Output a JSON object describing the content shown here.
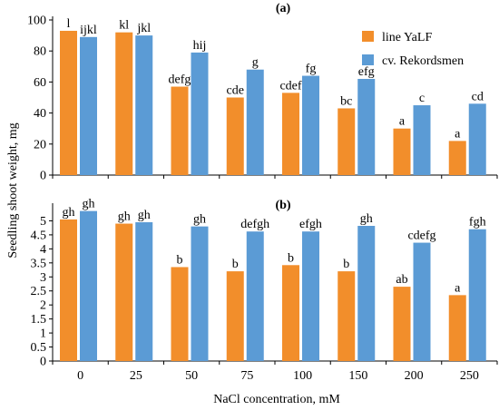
{
  "chart_data": [
    {
      "type": "bar",
      "panel_label": "(a)",
      "categories": [
        "0",
        "25",
        "50",
        "75",
        "100",
        "150",
        "200",
        "250"
      ],
      "ylim": [
        0,
        100
      ],
      "yticks": [
        0,
        20,
        40,
        60,
        80,
        100
      ],
      "grid": false,
      "legend_position": "top-right",
      "series": [
        {
          "name": "line YaLF",
          "color": "#F28E2B",
          "values": [
            93,
            92,
            57,
            50,
            53,
            43,
            30,
            22
          ],
          "labels": [
            "l",
            "kl",
            "defg",
            "cde",
            "cdef",
            "bc",
            "a",
            "a"
          ]
        },
        {
          "name": "cv. Rekordsmen",
          "color": "#5B9BD5",
          "values": [
            89,
            90,
            79,
            68,
            64,
            62,
            45,
            46
          ],
          "labels": [
            "ijkl",
            "jkl",
            "hij",
            "g",
            "fg",
            "efg",
            "c",
            "cd"
          ]
        }
      ]
    },
    {
      "type": "bar",
      "panel_label": "(b)",
      "categories": [
        "0",
        "25",
        "50",
        "75",
        "100",
        "150",
        "200",
        "250"
      ],
      "ylim": [
        0,
        5.5
      ],
      "yticks": [
        0,
        0.5,
        1,
        1.5,
        2,
        2.5,
        3,
        3.5,
        4,
        4.5,
        5
      ],
      "grid": false,
      "series": [
        {
          "name": "line YaLF",
          "color": "#F28E2B",
          "values": [
            5.05,
            4.9,
            3.35,
            3.2,
            3.42,
            3.2,
            2.65,
            2.35
          ],
          "labels": [
            "gh",
            "gh",
            "b",
            "b",
            "b",
            "b",
            "ab",
            "a"
          ]
        },
        {
          "name": "cv. Rekordsmen",
          "color": "#5B9BD5",
          "values": [
            5.35,
            4.95,
            4.8,
            4.62,
            4.62,
            4.82,
            4.22,
            4.7
          ],
          "labels": [
            "gh",
            "gh",
            "gh",
            "defgh",
            "efgh",
            "gh",
            "cdefg",
            "fgh"
          ]
        }
      ]
    }
  ],
  "ylabel": "Seedling shoot weight, mg",
  "xlabel": "NaCl concentration, mM"
}
